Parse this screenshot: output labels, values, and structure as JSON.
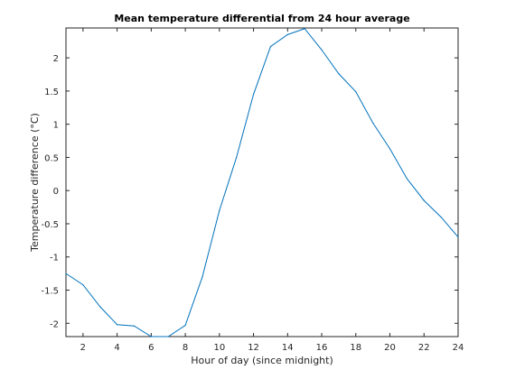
{
  "chart_data": {
    "type": "line",
    "title": "Mean temperature differential from 24 hour average",
    "xlabel": "Hour of day (since midnight)",
    "ylabel": "Temperature difference (°C)",
    "xlim": [
      1,
      24
    ],
    "ylim": [
      -2.2,
      2.45
    ],
    "xticks": [
      2,
      4,
      6,
      8,
      10,
      12,
      14,
      16,
      18,
      20,
      22,
      24
    ],
    "xtick_labels": [
      "2",
      "4",
      "6",
      "8",
      "10",
      "12",
      "14",
      "16",
      "18",
      "20",
      "22",
      "24"
    ],
    "yticks": [
      -2,
      -1.5,
      -1,
      -0.5,
      0,
      0.5,
      1,
      1.5,
      2
    ],
    "ytick_labels": [
      "-2",
      "-1.5",
      "-1",
      "-0.5",
      "0",
      "0.5",
      "1",
      "1.5",
      "2"
    ],
    "grid": false,
    "series": [
      {
        "color": "#0072bd",
        "x": [
          1,
          2,
          3,
          4,
          5,
          6,
          7,
          8,
          9,
          10,
          11,
          12,
          13,
          14,
          15,
          16,
          17,
          18,
          19,
          20,
          21,
          22,
          23,
          24
        ],
        "values": [
          -1.25,
          -1.42,
          -1.75,
          -2.02,
          -2.04,
          -2.2,
          -2.2,
          -2.03,
          -1.3,
          -0.3,
          0.5,
          1.45,
          2.17,
          2.35,
          2.44,
          2.12,
          1.76,
          1.49,
          1.02,
          0.63,
          0.18,
          -0.15,
          -0.4,
          -0.7
        ]
      }
    ]
  }
}
